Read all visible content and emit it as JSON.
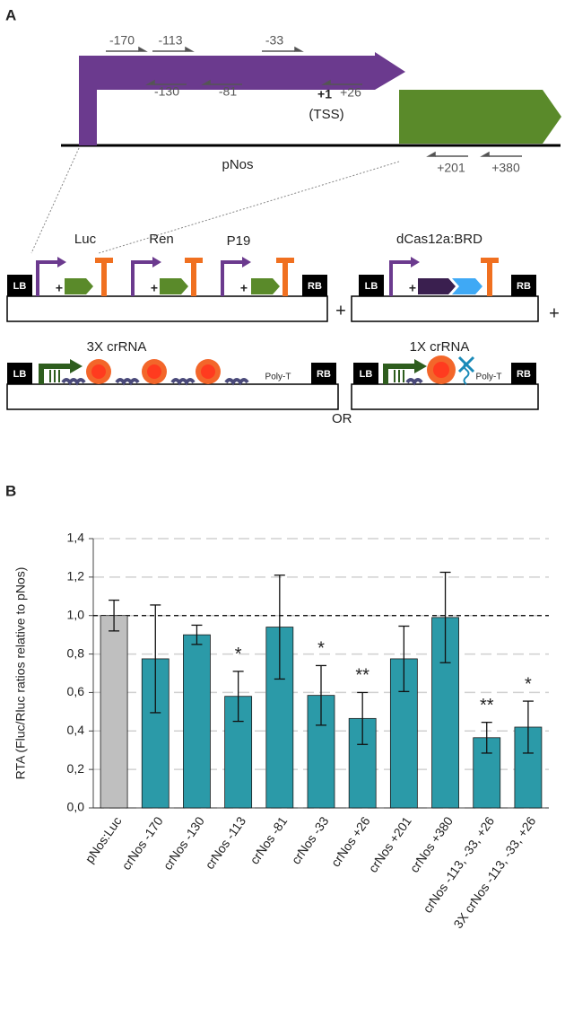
{
  "panel_a": {
    "label": "A",
    "primers_top": [
      "-170",
      "-113",
      "-33"
    ],
    "primers_bottom": [
      "-130",
      "-81"
    ],
    "tss": {
      "label": "+1",
      "primer": "+26",
      "note": "(TSS)"
    },
    "primers_gene": [
      "+201",
      "+380"
    ],
    "promoter": "pNos",
    "constructs": [
      {
        "genes": [
          "Luc",
          "Ren",
          "P19"
        ],
        "lb": "LB",
        "rb": "RB"
      },
      {
        "genes": [
          "dCas12a:BRD"
        ],
        "lb": "LB",
        "rb": "RB"
      },
      {
        "title": "3X crRNA",
        "lb": "LB",
        "rb": "RB",
        "poly_t": "Poly-T"
      },
      {
        "title": "1X crRNA",
        "lb": "LB",
        "rb": "RB",
        "poly_t": "Poly-T"
      }
    ],
    "plus": [
      "+",
      "+"
    ],
    "or": "OR"
  },
  "chart_data": {
    "type": "bar",
    "panel_label": "B",
    "y_label": "RTA (Fluc/Rluc ratios relative to pNos)",
    "categories": [
      "pNos:Luc",
      "crNos -170",
      "crNos -130",
      "crNos -113",
      "crNos -81",
      "crNos -33",
      "crNos +26",
      "crNos +201",
      "crNos +380",
      "crNos -113, -33, +26",
      "3X crNos -113, -33, +26"
    ],
    "values": [
      1.0,
      0.775,
      0.9,
      0.58,
      0.94,
      0.585,
      0.465,
      0.775,
      0.99,
      0.365,
      0.42
    ],
    "errors": [
      0.08,
      0.28,
      0.05,
      0.13,
      0.27,
      0.155,
      0.135,
      0.17,
      0.235,
      0.08,
      0.135
    ],
    "colors": [
      "#bfbfbf",
      "#2b9aa8",
      "#2b9aa8",
      "#2b9aa8",
      "#2b9aa8",
      "#2b9aa8",
      "#2b9aa8",
      "#2b9aa8",
      "#2b9aa8",
      "#2b9aa8",
      "#2b9aa8"
    ],
    "annotations": [
      null,
      null,
      null,
      "*",
      null,
      "*",
      "**",
      null,
      null,
      "**",
      "*"
    ],
    "reference_line": 1.0,
    "ylim": [
      0,
      1.4
    ],
    "yticks": [
      {
        "value": 0,
        "label": "0,0"
      },
      {
        "value": 0.2,
        "label": "0,2"
      },
      {
        "value": 0.4,
        "label": "0,4"
      },
      {
        "value": 0.6,
        "label": "0,6"
      },
      {
        "value": 0.8,
        "label": "0,8"
      },
      {
        "value": 1.0,
        "label": "1,0"
      },
      {
        "value": 1.2,
        "label": "1,2"
      },
      {
        "value": 1.4,
        "label": "1,4"
      }
    ],
    "grid": true
  }
}
